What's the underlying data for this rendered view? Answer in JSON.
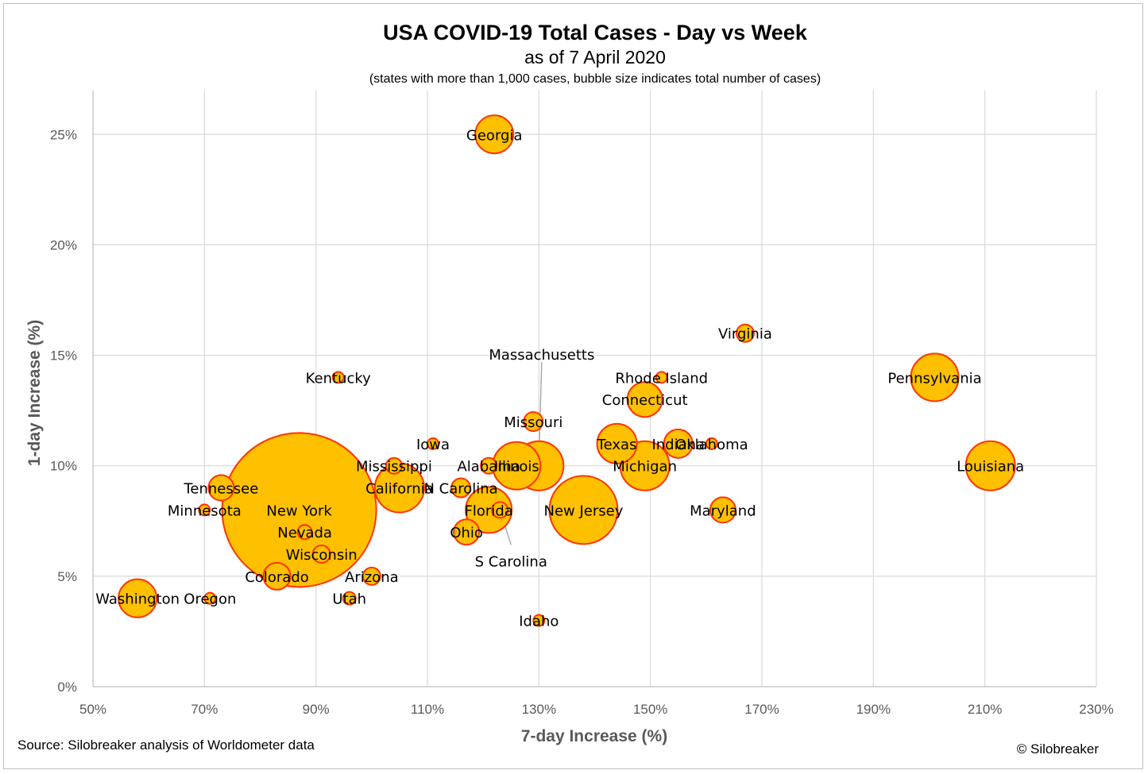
{
  "title": "USA COVID-19 Total Cases - Day vs Week",
  "subtitle": "as of 7 April 2020",
  "note": "(states with more than 1,000 cases, bubble size indicates total number of cases)",
  "source": "Source: Silobreaker analysis of Worldometer data",
  "copyright": "© Silobreaker",
  "colors": {
    "bubble_fill": "#FFC000",
    "bubble_stroke": "#FF3300",
    "axis_text": "#595959",
    "grid": "#d9d9d9"
  },
  "chart_data": {
    "type": "scatter",
    "xlabel": "7-day Increase (%)",
    "ylabel": "1-day Increase (%)",
    "xlim": [
      50,
      230
    ],
    "ylim": [
      0,
      27
    ],
    "x_ticks": [
      50,
      70,
      90,
      110,
      130,
      150,
      170,
      190,
      210,
      230
    ],
    "x_tick_labels": [
      "50%",
      "70%",
      "90%",
      "110%",
      "130%",
      "150%",
      "170%",
      "190%",
      "210%",
      "230%"
    ],
    "y_ticks": [
      0,
      5,
      10,
      15,
      20,
      25
    ],
    "y_tick_labels": [
      "0%",
      "5%",
      "10%",
      "15%",
      "20%",
      "25%"
    ],
    "grid": true,
    "legend": "none",
    "size_meaning": "total number of cases (relative bubble radius)",
    "points": [
      {
        "label": "New York",
        "x": 87,
        "y": 8,
        "size": 97
      },
      {
        "label": "New Jersey",
        "x": 138,
        "y": 8,
        "size": 43
      },
      {
        "label": "Michigan",
        "x": 149,
        "y": 10,
        "size": 31
      },
      {
        "label": "California",
        "x": 105,
        "y": 9,
        "size": 31
      },
      {
        "label": "Louisiana",
        "x": 211,
        "y": 10,
        "size": 31
      },
      {
        "label": "Massachusetts",
        "x": 130,
        "y": 10,
        "size": 31
      },
      {
        "label": "Pennsylvania",
        "x": 201,
        "y": 14,
        "size": 30
      },
      {
        "label": "Illinois",
        "x": 126,
        "y": 10,
        "size": 30
      },
      {
        "label": "Florida",
        "x": 121,
        "y": 8,
        "size": 29
      },
      {
        "label": "Texas",
        "x": 144,
        "y": 11,
        "size": 25
      },
      {
        "label": "Washington",
        "x": 58,
        "y": 4,
        "size": 24
      },
      {
        "label": "Georgia",
        "x": 122,
        "y": 25,
        "size": 24
      },
      {
        "label": "Connecticut",
        "x": 149,
        "y": 13,
        "size": 22
      },
      {
        "label": "Indiana",
        "x": 155,
        "y": 11,
        "size": 18
      },
      {
        "label": "Maryland",
        "x": 163,
        "y": 8,
        "size": 16
      },
      {
        "label": "Colorado",
        "x": 83,
        "y": 5,
        "size": 17
      },
      {
        "label": "Ohio",
        "x": 117,
        "y": 7,
        "size": 16
      },
      {
        "label": "Tennessee",
        "x": 73,
        "y": 9,
        "size": 16
      },
      {
        "label": "Missouri",
        "x": 129,
        "y": 12,
        "size": 12
      },
      {
        "label": "N Carolina",
        "x": 116,
        "y": 9,
        "size": 12
      },
      {
        "label": "Virginia",
        "x": 167,
        "y": 16,
        "size": 11
      },
      {
        "label": "Wisconsin",
        "x": 91,
        "y": 6,
        "size": 11
      },
      {
        "label": "Arizona",
        "x": 100,
        "y": 5,
        "size": 11
      },
      {
        "label": "S Carolina",
        "x": 123,
        "y": 8,
        "size": 10
      },
      {
        "label": "Mississippi",
        "x": 104,
        "y": 10,
        "size": 10
      },
      {
        "label": "Alabama",
        "x": 121,
        "y": 10,
        "size": 10
      },
      {
        "label": "Nevada",
        "x": 88,
        "y": 7,
        "size": 9
      },
      {
        "label": "Utah",
        "x": 96,
        "y": 4,
        "size": 8
      },
      {
        "label": "Oklahoma",
        "x": 161,
        "y": 11,
        "size": 7
      },
      {
        "label": "Kentucky",
        "x": 94,
        "y": 14,
        "size": 7
      },
      {
        "label": "Oregon",
        "x": 71,
        "y": 4,
        "size": 7
      },
      {
        "label": "Iowa",
        "x": 111,
        "y": 11,
        "size": 7
      },
      {
        "label": "Rhode Island",
        "x": 152,
        "y": 14,
        "size": 7
      },
      {
        "label": "Idaho",
        "x": 130,
        "y": 3,
        "size": 7
      },
      {
        "label": "Minnesota",
        "x": 70,
        "y": 8,
        "size": 7
      }
    ],
    "callouts": [
      {
        "label": "Massachusetts",
        "text_x": 130.5,
        "text_y": 15.05,
        "to_x": 130,
        "to_y": 10.3
      },
      {
        "label": "S Carolina",
        "text_x": 125,
        "text_y": 5.7,
        "to_x": 123,
        "to_y": 8
      }
    ]
  }
}
